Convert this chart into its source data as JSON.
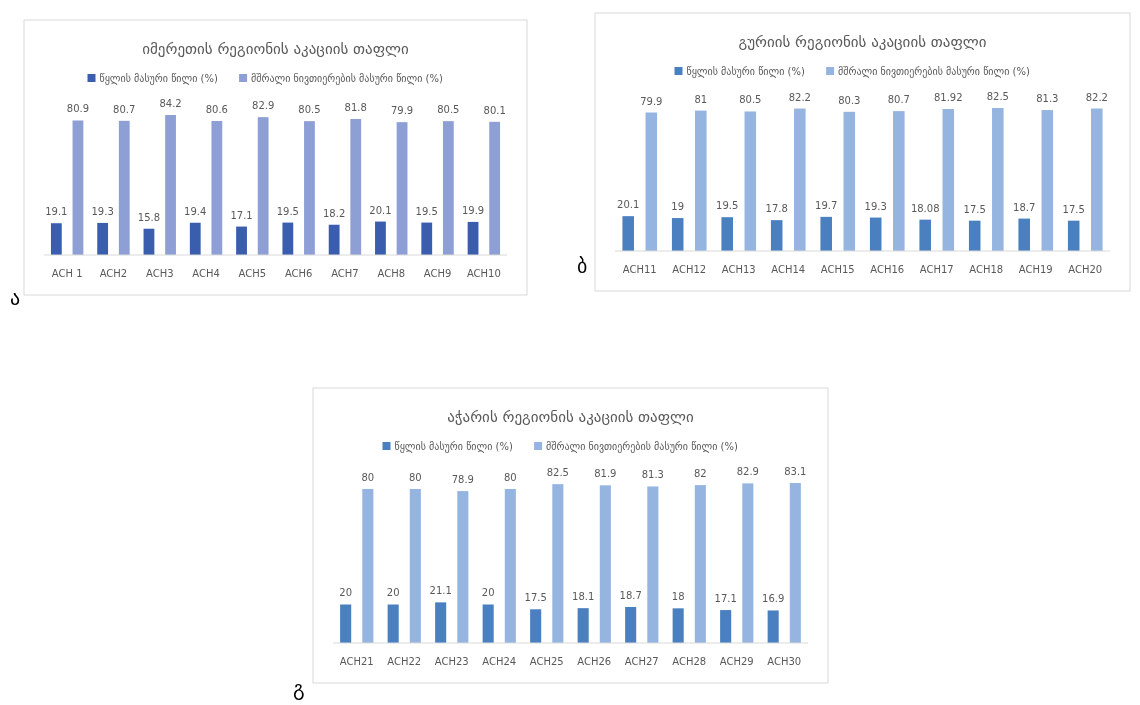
{
  "chart_data": [
    {
      "type": "bar",
      "title": "იმერეთის რეგიონის აკაციის თაფლი",
      "categories": [
        "ACH 1",
        "ACH2",
        "ACH3",
        "ACH4",
        "ACH5",
        "ACH6",
        "ACH7",
        "ACH8",
        "ACH9",
        "ACH10"
      ],
      "series": [
        {
          "name": "წყლის მასური წილი (%)",
          "color": "#3a5dae",
          "values": [
            19.1,
            19.3,
            15.8,
            19.4,
            17.1,
            19.5,
            18.2,
            20.1,
            19.5,
            19.9
          ]
        },
        {
          "name": "მშრალი ნივთიერების მასური წილი (%)",
          "color": "#8e9fd6",
          "values": [
            80.9,
            80.7,
            84.2,
            80.6,
            82.9,
            80.5,
            81.8,
            79.9,
            80.5,
            80.1
          ]
        }
      ],
      "data_labels": true,
      "legend": "top",
      "annotations": [
        "ა"
      ]
    },
    {
      "type": "bar",
      "title": "გურიის რეგიონის აკაციის თაფლი",
      "categories": [
        "ACH11",
        "ACH12",
        "ACH13",
        "ACH14",
        "ACH15",
        "ACH16",
        "ACH17",
        "ACH18",
        "ACH19",
        "ACH20"
      ],
      "series": [
        {
          "name": "წყლის მასური წილი (%)",
          "color": "#4a7fc0",
          "values": [
            20.1,
            19,
            19.5,
            17.8,
            19.7,
            19.3,
            18.08,
            17.5,
            18.7,
            17.5
          ]
        },
        {
          "name": "მშრალი ნივთიერების მასური წილი (%)",
          "color": "#95b5e0",
          "values": [
            79.9,
            81,
            80.5,
            82.2,
            80.3,
            80.7,
            81.92,
            82.5,
            81.3,
            82.2
          ]
        }
      ],
      "data_labels": true,
      "legend": "top",
      "annotations": [
        "ბ"
      ]
    },
    {
      "type": "bar",
      "title": "აჭარის რეგიონის აკაციის თაფლი",
      "categories": [
        "ACH21",
        "ACH22",
        "ACH23",
        "ACH24",
        "ACH25",
        "ACH26",
        "ACH27",
        "ACH28",
        "ACH29",
        "ACH30"
      ],
      "series": [
        {
          "name": "წყლის მასური წილი (%)",
          "color": "#4a7fc0",
          "values": [
            20,
            20,
            21.1,
            20,
            17.5,
            18.1,
            18.7,
            18,
            17.1,
            16.9
          ]
        },
        {
          "name": "მშრალი ნივთიერების მასური წილი (%)",
          "color": "#95b5e0",
          "values": [
            80,
            80,
            78.9,
            80,
            82.5,
            81.9,
            81.3,
            82,
            82.9,
            83.1
          ]
        }
      ],
      "data_labels": true,
      "legend": "top",
      "annotations": [
        "გ"
      ]
    }
  ]
}
